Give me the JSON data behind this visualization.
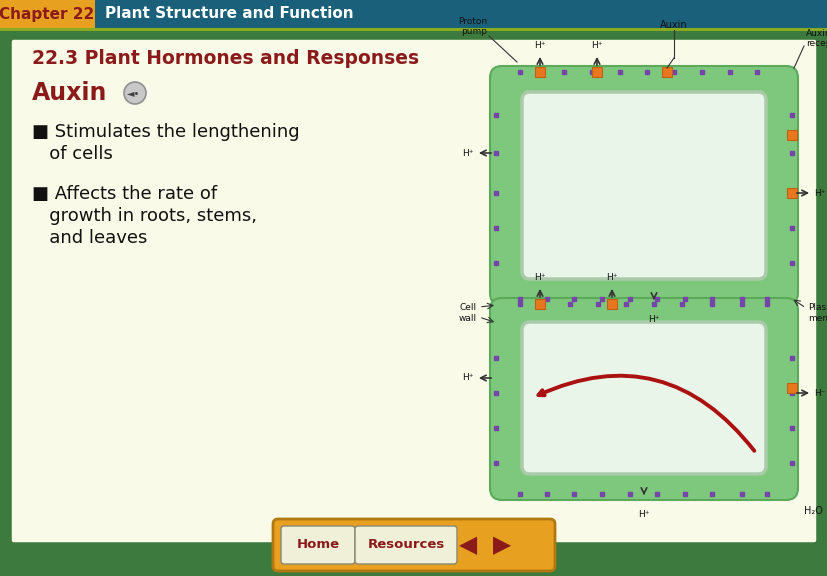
{
  "bg_outer": "#3d7a3d",
  "bg_inner": "#fafae8",
  "header_bg": "#1a607a",
  "header_label_bg": "#e8a020",
  "header_label_text": "Chapter 22",
  "header_title": "Plant Structure and Function",
  "header_title_color": "#ffffff",
  "section_title": "22.3 Plant Hormones and Responses",
  "section_title_color": "#8b1a1a",
  "topic_title": "Auxin",
  "topic_title_color": "#8b1a1a",
  "bullet1_line1": "■ Stimulates the lengthening",
  "bullet1_line2": "   of cells",
  "bullet2_line1": "■ Affects the rate of",
  "bullet2_line2": "   growth in roots, stems,",
  "bullet2_line3": "   and leaves",
  "text_color": "#111111",
  "footer_bg": "#e8a020",
  "footer_btn1": "Home",
  "footer_btn2": "Resources",
  "footer_btn_color": "#8b1a1a",
  "footer_arrow_color": "#8b1a1a",
  "header_stripe_color": "#8aaa20",
  "cell_outer_color": "#7dc87d",
  "cell_inner_color": "#d8f0d8",
  "cell_border_color": "#5aaa5a",
  "purple_dot": "#7744aa",
  "orange_sq": "#e87820",
  "diagram_label_color": "#111111",
  "red_arrow_color": "#aa1111"
}
